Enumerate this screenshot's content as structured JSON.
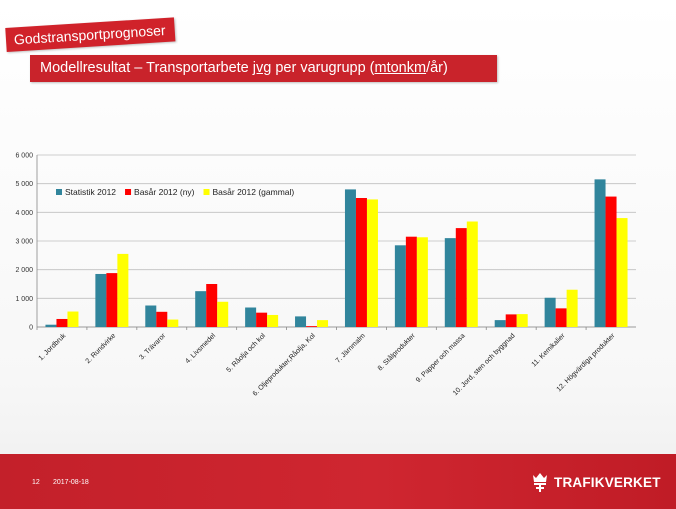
{
  "header": {
    "section_tag": "Godstransportprognoser",
    "title_pre": "Modellresultat – Transportarbete ",
    "title_jvg": "jvg",
    "title_mid": " per varugrupp (",
    "title_unit": "mtonkm",
    "title_post": "/år)"
  },
  "footer": {
    "page_number": "12",
    "date": "2017-08-18",
    "brand": "TRAFIKVERKET"
  },
  "chart_data": {
    "type": "bar",
    "categories": [
      "1.  Jordbruk",
      "2.  Rundvirke",
      "3.  Trävaror",
      "4.  Livsmedel",
      "5.  Råolja och kol",
      "6.  Oljeprodukter,Råolja, Kol",
      "7.  Järnmalm",
      "8.  Stålprodukter",
      "9.  Papper och massa",
      "10. Jord, sten och byggnad",
      "11. Kemikalier",
      "12. Högvärdiga produkter"
    ],
    "series": [
      {
        "name": "Statistik 2012",
        "color": "#31859c",
        "values": [
          80,
          1850,
          750,
          1250,
          680,
          370,
          4800,
          2850,
          3100,
          240,
          1020,
          5150
        ]
      },
      {
        "name": "Basår 2012 (ny)",
        "color": "#ff0000",
        "values": [
          280,
          1880,
          530,
          1500,
          500,
          30,
          4500,
          3150,
          3450,
          440,
          650,
          4550
        ]
      },
      {
        "name": "Basår 2012 (gammal)",
        "color": "#ffff00",
        "values": [
          540,
          2550,
          260,
          880,
          420,
          240,
          4450,
          3130,
          3680,
          450,
          1300,
          3800
        ]
      }
    ],
    "ylim": [
      0,
      6000
    ],
    "yticks": [
      0,
      1000,
      2000,
      3000,
      4000,
      5000,
      6000
    ],
    "ytick_labels": [
      "0",
      "1 000",
      "2 000",
      "3 000",
      "4 000",
      "5 000",
      "6 000"
    ],
    "grid": true,
    "legend_position": "top-left"
  }
}
